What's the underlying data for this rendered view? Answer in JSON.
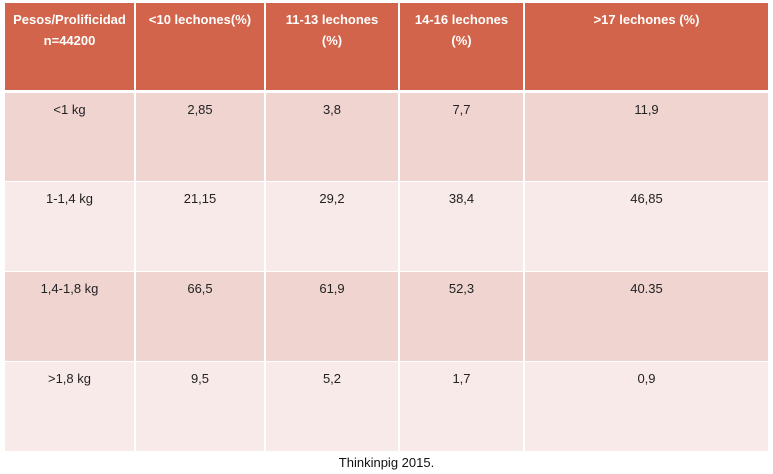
{
  "table": {
    "headers": [
      [
        "Pesos/Prolificidad",
        "n=44200"
      ],
      [
        "<10 lechones(%)"
      ],
      [
        "11-13 lechones",
        "(%)"
      ],
      [
        "14-16 lechones",
        "(%)"
      ],
      [
        ">17 lechones (%)"
      ]
    ],
    "rows": [
      [
        "<1 kg",
        "2,85",
        "3,8",
        "7,7",
        "11,9"
      ],
      [
        "1-1,4 kg",
        "21,15",
        "29,2",
        "38,4",
        "46,85"
      ],
      [
        "1,4-1,8 kg",
        "66,5",
        "61,9",
        "52,3",
        "40.35"
      ],
      [
        ">1,8 kg",
        "9,5",
        "5,2",
        "1,7",
        "0,9"
      ]
    ],
    "colors": {
      "header_bg": "#d1644a",
      "row_odd_bg": "#efd4d0",
      "row_even_bg": "#f8eae8"
    }
  },
  "caption": "Thinkinpig 2015."
}
